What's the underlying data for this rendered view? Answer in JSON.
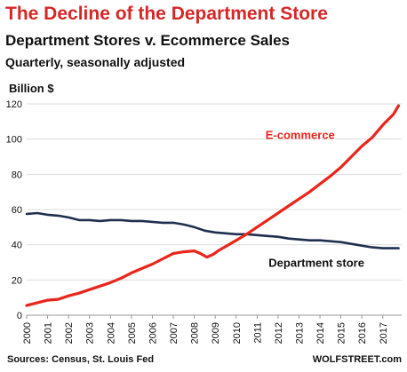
{
  "colors": {
    "title": "#d62727",
    "ecommerce": "#e8261c",
    "department": "#1f2f4f",
    "grid": "#dddddd"
  },
  "chart_data": {
    "type": "line",
    "title": "The Decline of the Department Store",
    "subtitle": "Department Stores v. Ecommerce Sales",
    "note": "Quarterly, seasonally adjusted",
    "ylabel": "Billion $",
    "xlabel": "",
    "ylim": [
      0,
      120
    ],
    "yticks": [
      0,
      20,
      40,
      60,
      80,
      100,
      120
    ],
    "xlim": [
      2000,
      2017.9
    ],
    "xticks": [
      "2000",
      "2001",
      "2002",
      "2003",
      "2004",
      "2005",
      "2006",
      "2007",
      "2008",
      "2009",
      "2010",
      "2011",
      "2012",
      "2013",
      "2014",
      "2015",
      "2016",
      "2017"
    ],
    "grid": true,
    "series": [
      {
        "name": "E-commerce",
        "x": [
          2000,
          2000.5,
          2001,
          2001.5,
          2002,
          2002.5,
          2003,
          2003.5,
          2004,
          2004.5,
          2005,
          2005.5,
          2006,
          2006.5,
          2007,
          2007.5,
          2008,
          2008.3,
          2008.6,
          2008.9,
          2009.2,
          2009.5,
          2010,
          2010.5,
          2011,
          2011.5,
          2012,
          2012.5,
          2013,
          2013.5,
          2014,
          2014.5,
          2015,
          2015.5,
          2016,
          2016.5,
          2017,
          2017.5,
          2017.75
        ],
        "values": [
          5.5,
          7,
          8.5,
          9,
          11,
          12.5,
          14.5,
          16.5,
          18.5,
          21,
          24,
          26.5,
          29,
          32,
          35,
          36,
          36.5,
          35,
          33,
          34.5,
          37,
          39,
          42.5,
          46,
          50,
          54,
          58,
          62,
          66,
          70,
          74.5,
          79,
          84,
          90,
          96,
          101,
          108,
          114,
          119
        ]
      },
      {
        "name": "Department store",
        "x": [
          2000,
          2000.5,
          2001,
          2001.5,
          2002,
          2002.5,
          2003,
          2003.5,
          2004,
          2004.5,
          2005,
          2005.5,
          2006,
          2006.5,
          2007,
          2007.5,
          2008,
          2008.5,
          2009,
          2009.5,
          2010,
          2010.5,
          2011,
          2011.5,
          2012,
          2012.5,
          2013,
          2013.5,
          2014,
          2014.5,
          2015,
          2015.5,
          2016,
          2016.5,
          2017,
          2017.5,
          2017.75
        ],
        "values": [
          57.5,
          58,
          57,
          56.5,
          55.5,
          54,
          54,
          53.5,
          54,
          54,
          53.5,
          53.5,
          53,
          52.5,
          52.5,
          51.5,
          50,
          48,
          47,
          46.5,
          46,
          46,
          45.5,
          45,
          44.5,
          43.5,
          43,
          42.5,
          42.5,
          42,
          41.5,
          40.5,
          39.5,
          38.5,
          38,
          38,
          38
        ]
      }
    ],
    "annotations": [
      "E-commerce",
      "Department store"
    ],
    "source": "Sources: Census, St. Louis Fed",
    "brand": "WOLFSTREET.com"
  }
}
